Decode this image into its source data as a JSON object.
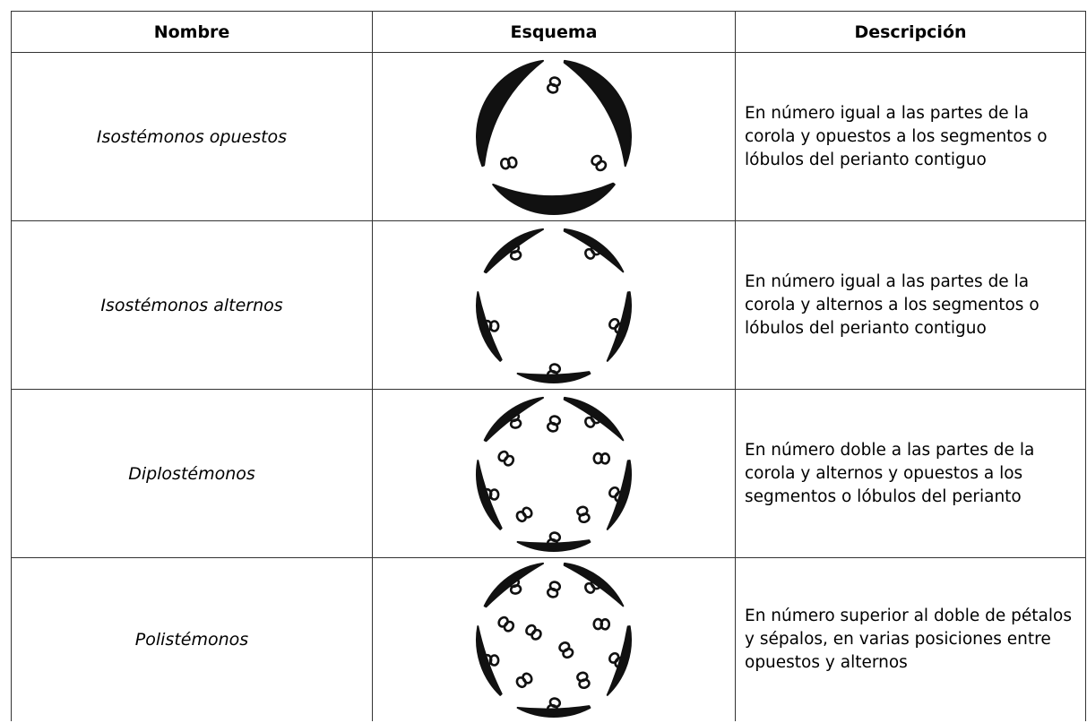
{
  "table": {
    "header": [
      "Nombre",
      "Esquema",
      "Descripción"
    ],
    "rows": [
      {
        "name": "Isostémonos opuestos",
        "description": "En número igual a las partes de la corola y opuestos a los segmentos o lóbulos del perianto contiguo"
      },
      {
        "name": "Isostémonos alternos",
        "description": "En número igual a las partes de la corola y alternos a los segmentos o lóbulos del perianto contiguo"
      },
      {
        "name": "Diplostémonos",
        "description": "En número doble a las partes de la corola y alternos y opuestos a los segmentos o lóbulos del perianto"
      },
      {
        "name": "Polistémonos",
        "description": "En número superior al doble de pétalos y sépalos, en varias posiciones entre opuestos y alternos"
      }
    ]
  }
}
